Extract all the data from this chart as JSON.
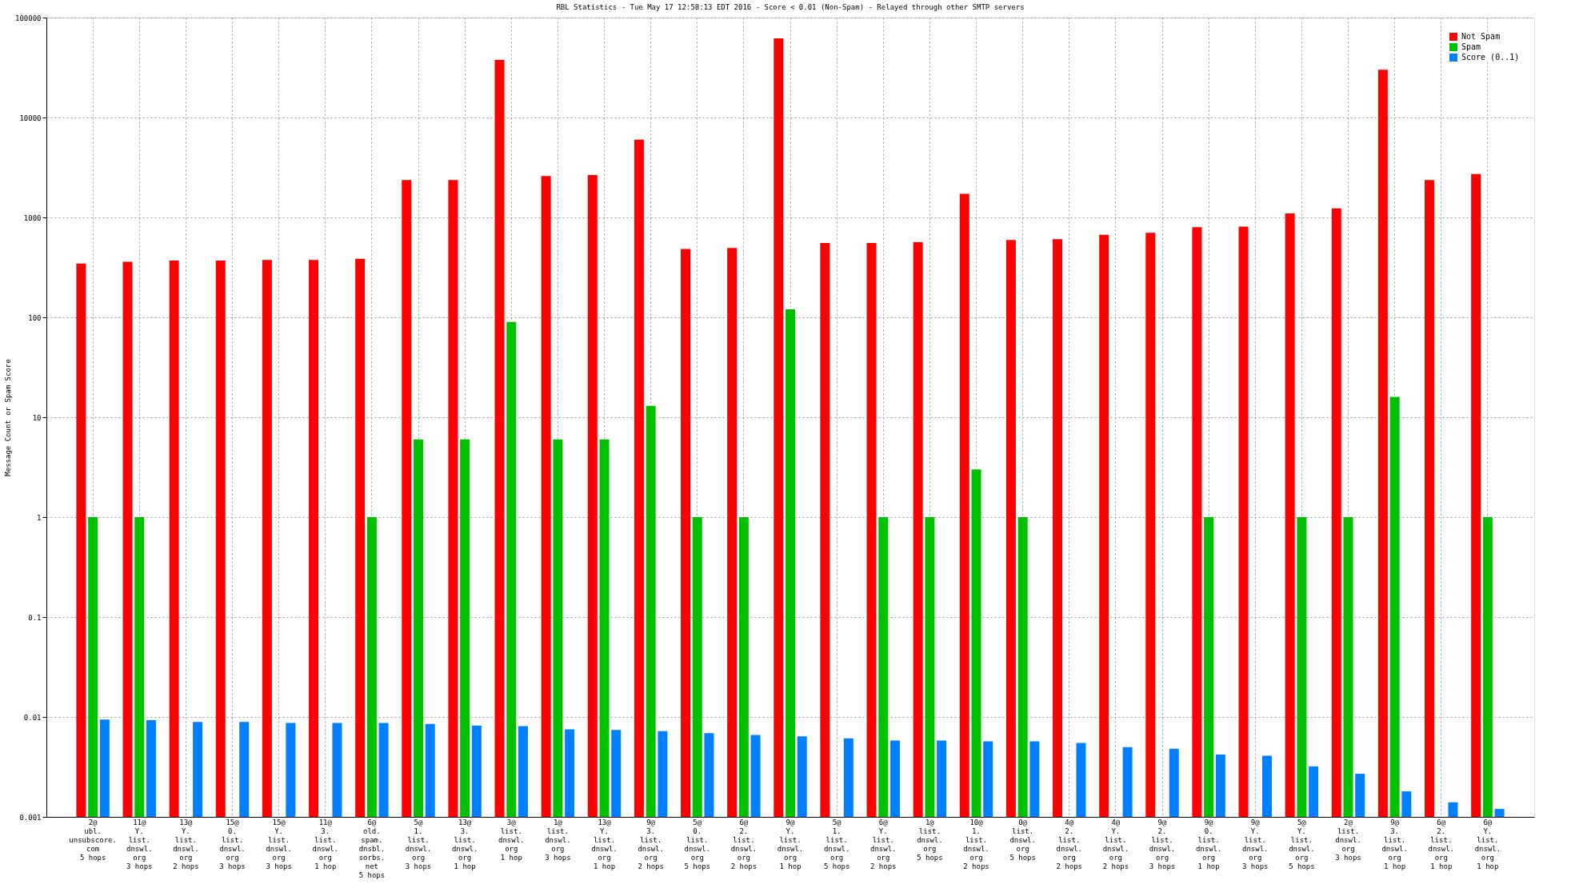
{
  "chart_data": {
    "type": "bar",
    "title": "RBL Statistics - Tue May 17 12:58:13 EDT 2016 - Score < 0.01 (Non-Spam) - Relayed through other SMTP servers",
    "ylabel": "Message Count or Spam Score",
    "categories": [
      "2@\nubl.\nunsubscore.\ncom\n5 hops",
      "11@\nY.\nlist.\ndnswl.\norg\n3 hops",
      "13@\nY.\nlist.\ndnswl.\norg\n2 hops",
      "15@\n0.\nlist.\ndnswl.\norg\n3 hops",
      "15@\nY.\nlist.\ndnswl.\norg\n3 hops",
      "11@\n3.\nlist.\ndnswl.\norg\n1 hop",
      "6@\nold.\nspam.\ndnsbl.\nsorbs.\nnet\n5 hops",
      "5@\n1.\nlist.\ndnswl.\norg\n3 hops",
      "13@\n3.\nlist.\ndnswl.\norg\n1 hop",
      "3@\nlist.\ndnswl.\norg\n1 hop",
      "1@\nlist.\ndnswl.\norg\n3 hops",
      "13@\nY.\nlist.\ndnswl.\norg\n1 hop",
      "9@\n3.\nlist.\ndnswl.\norg\n2 hops",
      "5@\n0.\nlist.\ndnswl.\norg\n5 hops",
      "6@\n2.\nlist.\ndnswl.\norg\n2 hops",
      "9@\nY.\nlist.\ndnswl.\norg\n1 hop",
      "5@\n1.\nlist.\ndnswl.\norg\n5 hops",
      "6@\nY.\nlist.\ndnswl.\norg\n2 hops",
      "1@\nlist.\ndnswl.\norg\n5 hops",
      "10@\n1.\nlist.\ndnswl.\norg\n2 hops",
      "0@\nlist.\ndnswl.\norg\n5 hops",
      "4@\n2.\nlist.\ndnswl.\norg\n2 hops",
      "4@\nY.\nlist.\ndnswl.\norg\n2 hops",
      "9@\n2.\nlist.\ndnswl.\norg\n3 hops",
      "9@\n0.\nlist.\ndnswl.\norg\n1 hop",
      "9@\nY.\nlist.\ndnswl.\norg\n3 hops",
      "5@\nY.\nlist.\ndnswl.\norg\n5 hops",
      "2@\nlist.\ndnswl.\norg\n3 hops",
      "9@\n3.\nlist.\ndnswl.\norg\n1 hop",
      "6@\n2.\nlist.\ndnswl.\norg\n1 hop",
      "6@\nY.\nlist.\ndnswl.\norg\n1 hop"
    ],
    "series": [
      {
        "name": "Not Spam",
        "color": "#ff0000",
        "values": [
          345,
          360,
          370,
          370,
          375,
          375,
          385,
          2370,
          2370,
          37700,
          2600,
          2650,
          6000,
          484,
          495,
          62000,
          555,
          555,
          565,
          1720,
          593,
          605,
          670,
          700,
          797,
          810,
          1095,
          1230,
          30000,
          2370,
          2720
        ]
      },
      {
        "name": "Spam",
        "color": "#00c000",
        "values": [
          1,
          1,
          null,
          null,
          null,
          null,
          1,
          6,
          6,
          90,
          6,
          6,
          13,
          1,
          1,
          120,
          null,
          1,
          1,
          3,
          1,
          null,
          null,
          null,
          1,
          null,
          1,
          1,
          16,
          null,
          1
        ]
      },
      {
        "name": "Score (0..1)",
        "color": "#0080ff",
        "values": [
          0.0094,
          0.0093,
          0.0089,
          0.0089,
          0.0087,
          0.0087,
          0.0087,
          0.0085,
          0.0082,
          0.0081,
          0.0075,
          0.0074,
          0.0072,
          0.0069,
          0.0066,
          0.0064,
          0.0061,
          0.0058,
          0.0058,
          0.0057,
          0.0057,
          0.0055,
          0.005,
          0.0048,
          0.0042,
          0.0041,
          0.0032,
          0.0027,
          0.0018,
          0.0014,
          0.0012
        ]
      }
    ],
    "log": true,
    "ylim": [
      0.001,
      100000
    ],
    "yticks": [
      0.001,
      0.01,
      0.1,
      1,
      10,
      100,
      1000,
      10000,
      100000
    ],
    "grid": true,
    "legend": "top right"
  }
}
